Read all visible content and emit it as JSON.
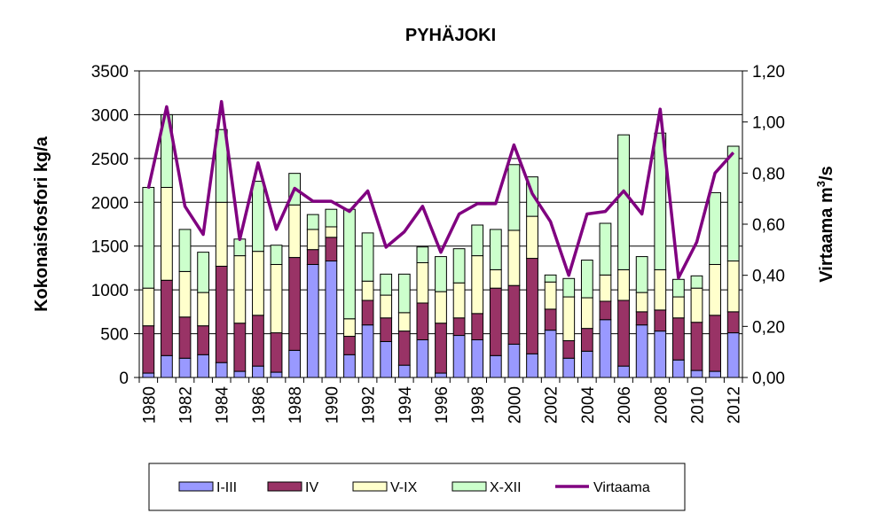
{
  "chart_data": {
    "type": "bar",
    "stacked": true,
    "title": "PYHÄJOKI",
    "ylabel": "Kokonaisfosfori kg/a",
    "y2label_main": "Virtaama m",
    "y2label_sup": "3",
    "y2label_end": "/s",
    "ylim": [
      0,
      3500
    ],
    "yticks": [
      "0",
      "500",
      "1000",
      "1500",
      "2000",
      "2500",
      "3000",
      "3500"
    ],
    "y2lim": [
      0,
      1.2
    ],
    "y2ticks": [
      "0,00",
      "0,20",
      "0,40",
      "0,60",
      "0,80",
      "1,00",
      "1,20"
    ],
    "grid": true,
    "legend_position": "bottom",
    "categories": [
      "1980",
      "1981",
      "1982",
      "1983",
      "1984",
      "1985",
      "1986",
      "1987",
      "1988",
      "1989",
      "1990",
      "1991",
      "1992",
      "1993",
      "1994",
      "1995",
      "1996",
      "1997",
      "1998",
      "1999",
      "2000",
      "2001",
      "2002",
      "2003",
      "2004",
      "2005",
      "2006",
      "2007",
      "2008",
      "2009",
      "2010",
      "2011",
      "2012"
    ],
    "xticks_shown": [
      "1980",
      "1982",
      "1984",
      "1986",
      "1988",
      "1990",
      "1992",
      "1994",
      "1996",
      "1998",
      "2000",
      "2002",
      "2004",
      "2006",
      "2008",
      "2010",
      "2012"
    ],
    "series": [
      {
        "name": "I-III",
        "color": "#9999ff",
        "values": [
          50,
          250,
          220,
          260,
          170,
          70,
          130,
          60,
          310,
          1290,
          1330,
          260,
          600,
          410,
          140,
          430,
          50,
          480,
          430,
          250,
          380,
          270,
          540,
          220,
          300,
          660,
          130,
          600,
          530,
          200,
          80,
          70,
          510
        ]
      },
      {
        "name": "IV",
        "color": "#993366",
        "values": [
          540,
          860,
          470,
          330,
          1100,
          550,
          580,
          450,
          1060,
          170,
          270,
          210,
          280,
          270,
          390,
          420,
          570,
          200,
          300,
          770,
          670,
          1090,
          240,
          200,
          260,
          210,
          750,
          150,
          240,
          480,
          550,
          640,
          240
        ]
      },
      {
        "name": "V-IX",
        "color": "#ffffcc",
        "values": [
          430,
          1060,
          520,
          380,
          730,
          770,
          730,
          780,
          600,
          230,
          120,
          200,
          220,
          260,
          210,
          460,
          360,
          400,
          660,
          210,
          630,
          480,
          310,
          500,
          350,
          300,
          350,
          220,
          460,
          240,
          390,
          580,
          580
        ]
      },
      {
        "name": "X-XII",
        "color": "#ccffcc",
        "values": [
          1150,
          830,
          480,
          460,
          830,
          190,
          800,
          220,
          360,
          170,
          200,
          1250,
          550,
          240,
          440,
          180,
          400,
          390,
          350,
          460,
          750,
          450,
          80,
          210,
          430,
          590,
          1540,
          410,
          1560,
          200,
          140,
          820,
          1310
        ]
      }
    ],
    "line": {
      "name": "Virtaama",
      "color": "#800080",
      "axis": "right",
      "values": [
        0.74,
        1.06,
        0.67,
        0.56,
        1.08,
        0.54,
        0.84,
        0.58,
        0.74,
        0.69,
        0.69,
        0.65,
        0.73,
        0.51,
        0.57,
        0.67,
        0.49,
        0.64,
        0.68,
        0.68,
        0.91,
        0.72,
        0.61,
        0.4,
        0.64,
        0.65,
        0.73,
        0.64,
        1.05,
        0.39,
        0.53,
        0.8,
        0.88
      ]
    }
  }
}
